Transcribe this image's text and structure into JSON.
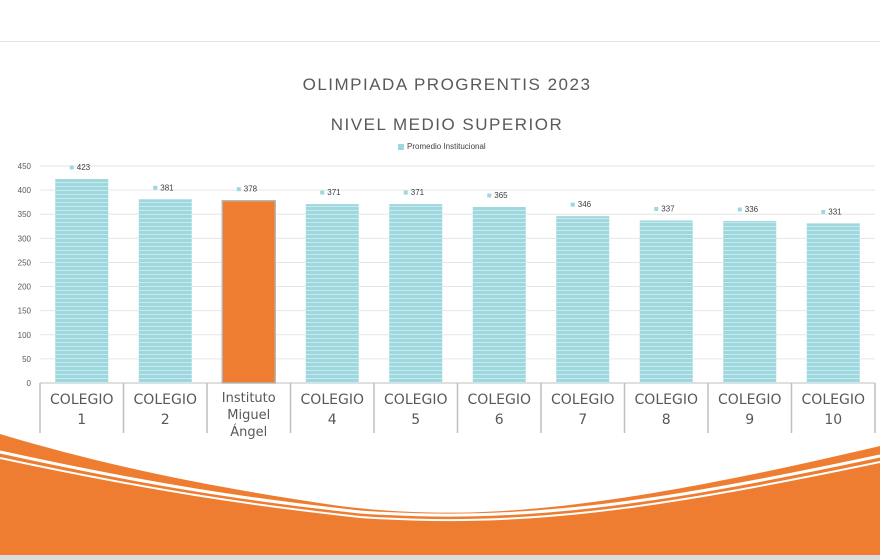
{
  "chart_data": {
    "type": "bar",
    "title": "OLIMPIADA PROGRENTIS 2023",
    "subtitle": "NIVEL MEDIO SUPERIOR",
    "categories": [
      "COLEGIO 1",
      "COLEGIO 2",
      "Instituto Miguel Ángel",
      "COLEGIO 4",
      "COLEGIO 5",
      "COLEGIO 6",
      "COLEGIO 7",
      "COLEGIO 8",
      "COLEGIO 9",
      "COLEGIO 10"
    ],
    "category_lines": [
      [
        "COLEGIO",
        "1"
      ],
      [
        "COLEGIO",
        "2"
      ],
      [
        "Instituto",
        "Miguel",
        "Ángel"
      ],
      [
        "COLEGIO",
        "4"
      ],
      [
        "COLEGIO",
        "5"
      ],
      [
        "COLEGIO",
        "6"
      ],
      [
        "COLEGIO",
        "7"
      ],
      [
        "COLEGIO",
        "8"
      ],
      [
        "COLEGIO",
        "9"
      ],
      [
        "COLEGIO",
        "10"
      ]
    ],
    "series": [
      {
        "name": "Promedio Institucional",
        "values": [
          423,
          381,
          378,
          371,
          371,
          365,
          346,
          337,
          336,
          331
        ]
      }
    ],
    "highlight_index": 2,
    "ylim": [
      0,
      450
    ],
    "yticks": [
      0,
      50,
      100,
      150,
      200,
      250,
      300,
      350,
      400,
      450
    ],
    "grid": true,
    "legend": "top-center",
    "colors": {
      "bar": "#9ed8de",
      "bar_stripe": "#c6eaee",
      "highlight": "#ee7d31",
      "axis_text": "#595959",
      "grid": "#e6e6e6",
      "wave": "#ee7d31"
    }
  }
}
